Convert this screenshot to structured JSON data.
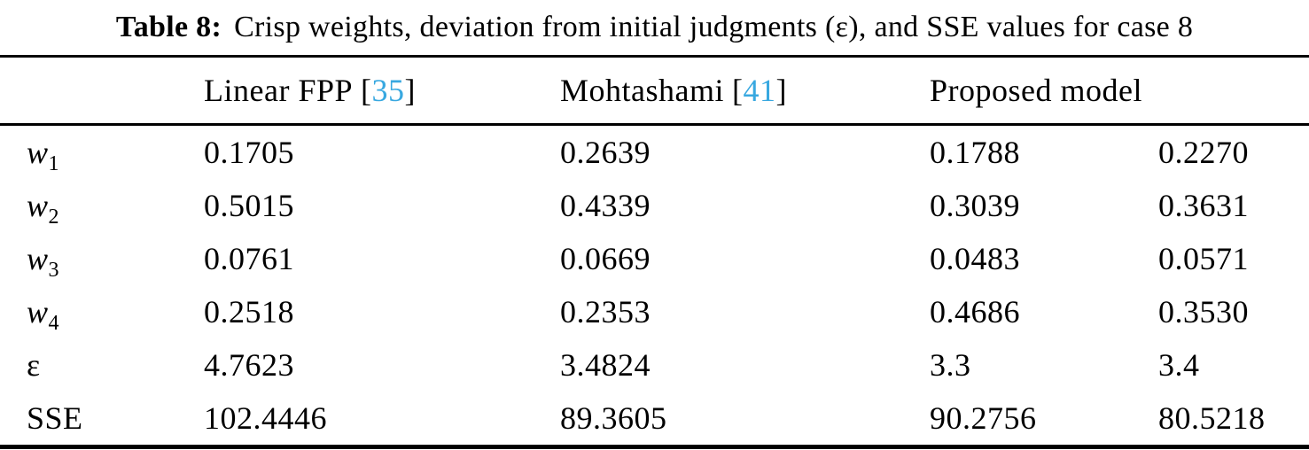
{
  "title": {
    "label": "Table 8:",
    "text": "Crisp weights, deviation from initial judgments (ε), and SSE values for case 8"
  },
  "colors": {
    "text": "#000000",
    "citation": "#38a8e0",
    "background": "#ffffff",
    "rule": "#000000"
  },
  "citation_brackets": {
    "open": "[",
    "close": "]"
  },
  "table": {
    "columns": [
      {
        "name": "Linear FPP",
        "cite": "35"
      },
      {
        "name": "Mohtashami",
        "cite": "41"
      },
      {
        "name": "Proposed model",
        "cite": ""
      }
    ],
    "rows": [
      {
        "label": "w",
        "sub": "1",
        "values": [
          "0.1705",
          "0.2639",
          "0.1788",
          "0.2270"
        ]
      },
      {
        "label": "w",
        "sub": "2",
        "values": [
          "0.5015",
          "0.4339",
          "0.3039",
          "0.3631"
        ]
      },
      {
        "label": "w",
        "sub": "3",
        "values": [
          "0.0761",
          "0.0669",
          "0.0483",
          "0.0571"
        ]
      },
      {
        "label": "w",
        "sub": "4",
        "values": [
          "0.2518",
          "0.2353",
          "0.4686",
          "0.3530"
        ]
      },
      {
        "label": "ε",
        "sub": "",
        "values": [
          "4.7623",
          "3.4824",
          "3.3",
          "3.4"
        ]
      },
      {
        "label": "SSE",
        "sub": "",
        "values": [
          "102.4446",
          "89.3605",
          "90.2756",
          "80.5218"
        ]
      }
    ]
  }
}
